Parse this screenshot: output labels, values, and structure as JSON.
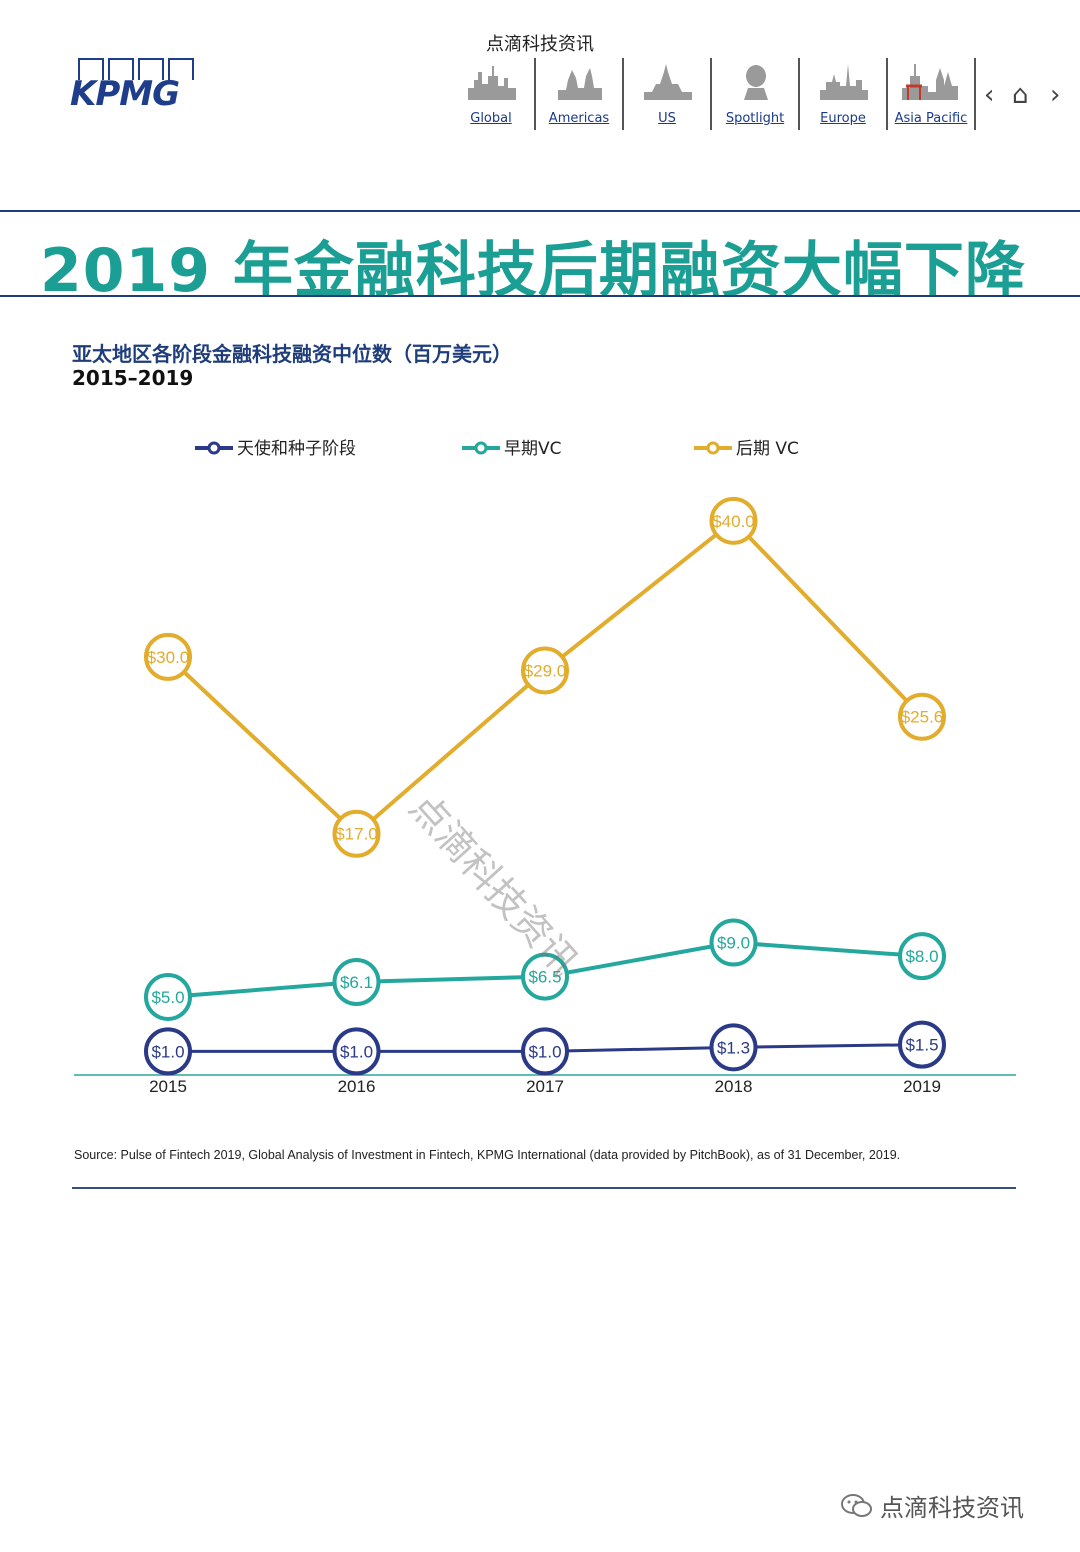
{
  "header": {
    "source_watermark": "点滴科技资讯",
    "logo_text": "KPMG",
    "nav": [
      {
        "label": "Global",
        "icon": "global-skyline-icon"
      },
      {
        "label": "Americas",
        "icon": "americas-skyline-icon"
      },
      {
        "label": "US",
        "icon": "us-skyline-icon"
      },
      {
        "label": "Spotlight",
        "icon": "spotlight-bust-icon"
      },
      {
        "label": "Europe",
        "icon": "europe-skyline-icon"
      },
      {
        "label": "Asia Pacific",
        "icon": "asia-pacific-skyline-icon"
      }
    ],
    "controls": {
      "prev": "‹",
      "home": "⌂",
      "next": "›"
    }
  },
  "page_title": "2019 年金融科技后期融资大幅下降",
  "colors": {
    "teal": "#1b9e93",
    "navy": "#1f3d7a",
    "gold": "#e2ac2c"
  },
  "chart_data": {
    "type": "line",
    "title": "亚太地区各阶段金融科技融资中位数（百万美元）",
    "subtitle": "2015–2019",
    "categories": [
      "2015",
      "2016",
      "2017",
      "2018",
      "2019"
    ],
    "series": [
      {
        "name": "天使和种子阶段",
        "color": "#2a3a86",
        "values": [
          1.0,
          1.0,
          1.0,
          1.3,
          1.5
        ],
        "labels": [
          "$1.0",
          "$1.0",
          "$1.0",
          "$1.3",
          "$1.5"
        ]
      },
      {
        "name": "早期VC",
        "color": "#24a79c",
        "values": [
          5.0,
          6.1,
          6.5,
          9.0,
          8.0
        ],
        "labels": [
          "$5.0",
          "$6.1",
          "$6.5",
          "$9.0",
          "$8.0"
        ]
      },
      {
        "name": "后期 VC",
        "color": "#e2ac2c",
        "values": [
          30.0,
          17.0,
          29.0,
          40.0,
          25.6
        ],
        "labels": [
          "$30.0",
          "$17.0",
          "$29.0",
          "$40.0",
          "$25.6"
        ]
      }
    ],
    "ylim": [
      0,
      43
    ],
    "legend_position": "top",
    "grid": false
  },
  "source_note": "Source: Pulse of Fintech 2019, Global Analysis of Investment in Fintech, KPMG International (data provided by PitchBook), as of 31 December, 2019.",
  "diagonal_watermark": "点滴科技资讯",
  "bottom_watermark": "点滴科技资讯"
}
